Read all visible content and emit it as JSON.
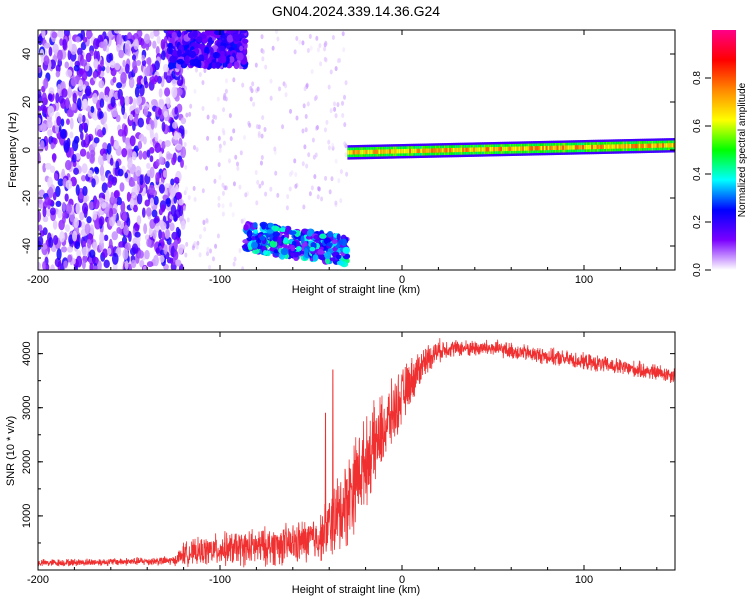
{
  "title": "GN04.2024.339.14.36.G24",
  "chart_data": [
    {
      "type": "heatmap",
      "xlabel": "Height of straight line (km)",
      "ylabel": "Frequency (Hz)",
      "xlim": [
        -200,
        150
      ],
      "ylim": [
        -50,
        50
      ],
      "xticks": [
        -200,
        -100,
        0,
        100
      ],
      "yticks": [
        -40,
        -20,
        0,
        20,
        40
      ],
      "colorbar": {
        "label": "Normalized spectral amplitude",
        "range": [
          0.0,
          1.0
        ],
        "ticks": [
          0.0,
          0.2,
          0.4,
          0.6,
          0.8
        ],
        "tick_labels": [
          "0.0",
          "0.2",
          "0.4",
          "0.6",
          "0.8"
        ],
        "colors": [
          "#ffffff",
          "#7a00ff",
          "#0000ff",
          "#00ffff",
          "#00ff00",
          "#ffff00",
          "#ff8800",
          "#ff0000",
          "#ff0088"
        ]
      },
      "features": [
        {
          "name": "diffuse noise",
          "x": [
            -200,
            -120
          ],
          "y": [
            -50,
            50
          ],
          "amplitude": 0.05
        },
        {
          "name": "strong upper band",
          "x": [
            -128,
            -86
          ],
          "y": [
            35,
            50
          ],
          "amplitude": 0.15
        },
        {
          "name": "sparse scatter",
          "x": [
            -120,
            -30
          ],
          "y": [
            -50,
            50
          ],
          "amplitude": 0.02
        },
        {
          "name": "lower band",
          "x": [
            -86,
            -30
          ],
          "y_start": -36,
          "y_end": -42,
          "amplitude": 0.25
        },
        {
          "name": "main signal line",
          "x": [
            -30,
            150
          ],
          "y_start": -1,
          "y_end": 2,
          "amplitude": 0.8
        }
      ]
    },
    {
      "type": "line",
      "xlabel": "Height of straight line (km)",
      "ylabel": "SNR (10 * v/v)",
      "xlim": [
        -200,
        150
      ],
      "ylim": [
        0,
        4400
      ],
      "xticks": [
        -200,
        -100,
        0,
        100
      ],
      "yticks": [
        1000,
        2000,
        3000,
        4000
      ],
      "color": "#f03030",
      "series_profile": {
        "x": [
          -200,
          -160,
          -125,
          -120,
          -100,
          -80,
          -60,
          -45,
          -40,
          -35,
          -30,
          -25,
          -20,
          -15,
          -10,
          -5,
          0,
          5,
          10,
          15,
          20,
          25,
          30,
          40,
          50,
          60,
          70,
          80,
          90,
          100,
          110,
          120,
          130,
          140,
          150
        ],
        "mean": [
          130,
          150,
          170,
          300,
          380,
          420,
          480,
          600,
          800,
          1000,
          1300,
          1700,
          2000,
          2300,
          2600,
          2900,
          3200,
          3500,
          3750,
          3950,
          4050,
          4100,
          4100,
          4100,
          4100,
          4050,
          4000,
          3950,
          3900,
          3850,
          3800,
          3750,
          3700,
          3650,
          3600
        ],
        "spread": [
          80,
          80,
          100,
          250,
          350,
          400,
          450,
          500,
          700,
          900,
          1000,
          1000,
          900,
          900,
          800,
          700,
          600,
          500,
          400,
          300,
          250,
          200,
          180,
          180,
          180,
          180,
          180,
          180,
          180,
          180,
          180,
          180,
          180,
          180,
          180
        ]
      },
      "spikes": [
        {
          "x": -38,
          "y": 3700
        },
        {
          "x": -42,
          "y": 2900
        }
      ]
    }
  ]
}
